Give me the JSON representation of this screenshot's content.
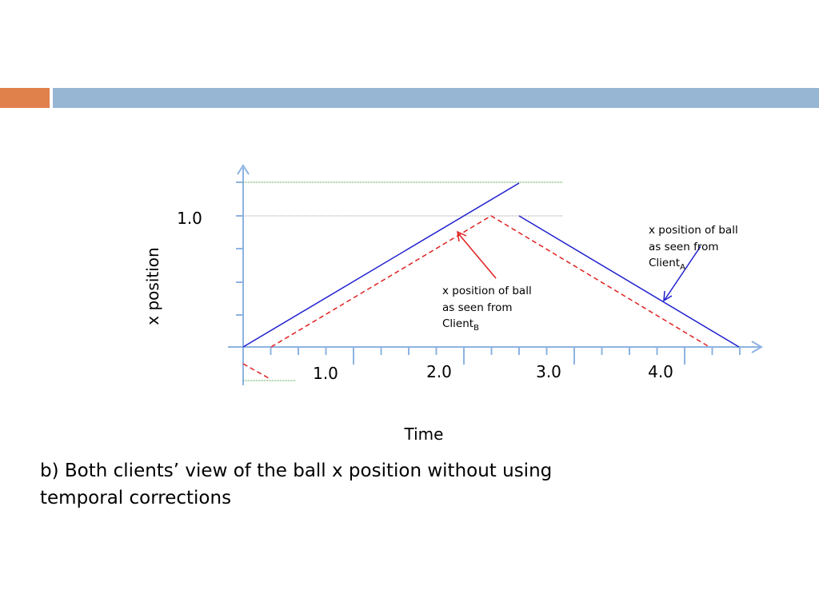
{
  "header": {
    "accent": "",
    "bar": ""
  },
  "diagram": {
    "y_axis_label": "x position",
    "y_tick_label": "1.0",
    "x_tick_labels": [
      "1.0",
      "2.0",
      "3.0",
      "4.0"
    ],
    "x_axis_label": "Time",
    "annotation_a": {
      "lines": [
        "x position of ball",
        "as seen from",
        "Client"
      ],
      "subscript": "A"
    },
    "annotation_b": {
      "lines": [
        "x position of ball",
        "as seen from",
        "Client"
      ],
      "subscript": "B"
    }
  },
  "caption": {
    "lines": [
      "b) Both clients’ view of the ball x position without using",
      "temporal corrections"
    ]
  }
}
